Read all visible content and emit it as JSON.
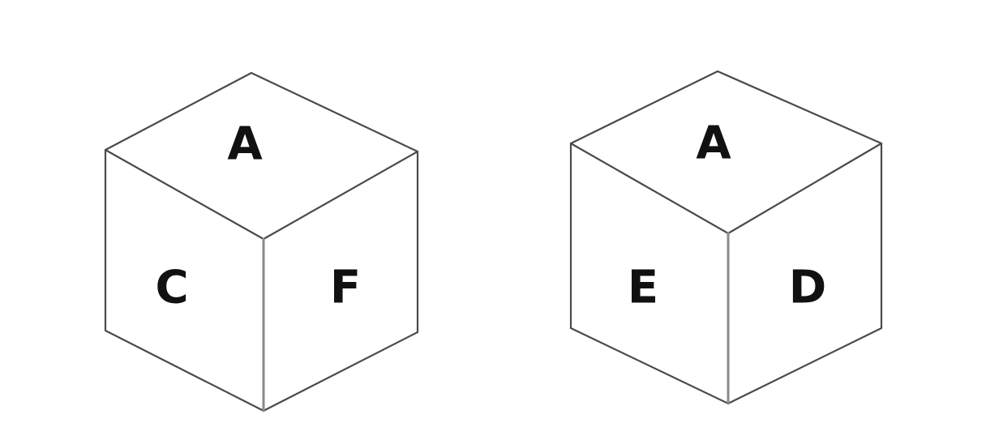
{
  "cubes": [
    {
      "top": "A",
      "left": "C",
      "right": "F"
    },
    {
      "top": "A",
      "left": "E",
      "right": "D"
    }
  ]
}
